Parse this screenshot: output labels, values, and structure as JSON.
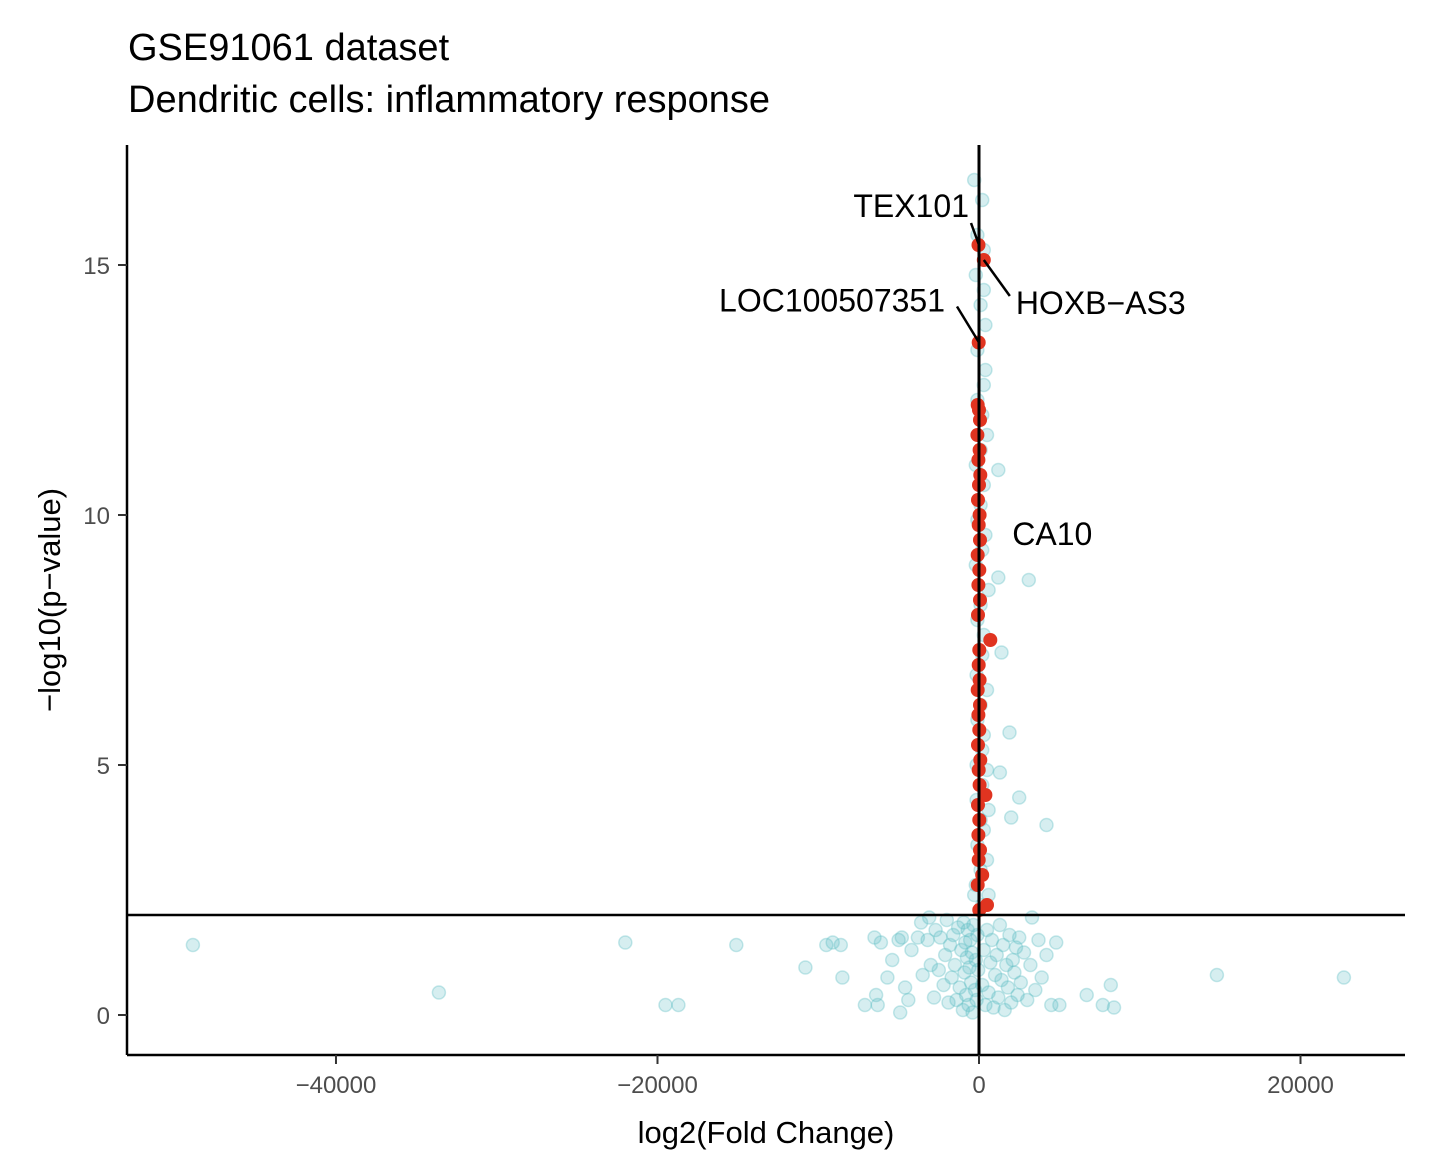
{
  "chart_data": {
    "type": "scatter",
    "title": "GSE91061 dataset",
    "subtitle": "Dendritic cells: inflammatory response",
    "xlabel": "log2(Fold Change)",
    "ylabel": "−log10(p−value)",
    "xlim": [
      -53000,
      26500
    ],
    "ylim": [
      -0.8,
      17.4
    ],
    "x_ticks": [
      -40000,
      -20000,
      0,
      20000
    ],
    "x_tick_labels": [
      "−40000",
      "−20000",
      "0",
      "20000"
    ],
    "y_ticks": [
      0,
      5,
      10,
      15
    ],
    "y_tick_labels": [
      "0",
      "5",
      "10",
      "15"
    ],
    "reference_lines": {
      "vertical_x": 0,
      "horizontal_y": 2
    },
    "grid": false,
    "legend": "none",
    "colors": {
      "nonsignificant": "#5bbcc4",
      "significant": "#e03420",
      "line": "#000000"
    },
    "series": [
      {
        "role": "nonsignificant",
        "points": [
          [
            -48900,
            1.4
          ],
          [
            -33600,
            0.45
          ],
          [
            -22000,
            1.45
          ],
          [
            -19500,
            0.2
          ],
          [
            -18700,
            0.2
          ],
          [
            -15100,
            1.4
          ],
          [
            -10800,
            0.95
          ],
          [
            -9500,
            1.4
          ],
          [
            -9100,
            1.45
          ],
          [
            -8600,
            1.4
          ],
          [
            -8500,
            0.75
          ],
          [
            -7100,
            0.2
          ],
          [
            -6500,
            1.55
          ],
          [
            -6400,
            0.4
          ],
          [
            -6300,
            0.2
          ],
          [
            -6100,
            1.45
          ],
          [
            -5700,
            0.75
          ],
          [
            -5400,
            1.1
          ],
          [
            -5000,
            1.5
          ],
          [
            -4900,
            0.05
          ],
          [
            -4800,
            1.55
          ],
          [
            -4600,
            0.55
          ],
          [
            -4400,
            0.3
          ],
          [
            -4200,
            1.3
          ],
          [
            -3800,
            1.55
          ],
          [
            -3600,
            1.85
          ],
          [
            -3500,
            0.8
          ],
          [
            -3200,
            1.5
          ],
          [
            -3100,
            1.95
          ],
          [
            -3000,
            1.0
          ],
          [
            -2800,
            0.35
          ],
          [
            -2700,
            1.7
          ],
          [
            -2500,
            0.9
          ],
          [
            -2400,
            1.55
          ],
          [
            -2200,
            0.6
          ],
          [
            -2100,
            1.2
          ],
          [
            -2000,
            1.9
          ],
          [
            -1900,
            0.25
          ],
          [
            -1800,
            1.4
          ],
          [
            -1700,
            0.75
          ],
          [
            -1600,
            1.6
          ],
          [
            -1500,
            1.0
          ],
          [
            -1400,
            0.3
          ],
          [
            -1300,
            1.75
          ],
          [
            -1200,
            0.55
          ],
          [
            -1100,
            1.3
          ],
          [
            -1000,
            0.1
          ],
          [
            -950,
            1.85
          ],
          [
            -900,
            0.85
          ],
          [
            -850,
            1.45
          ],
          [
            -800,
            0.4
          ],
          [
            -750,
            1.15
          ],
          [
            -700,
            1.7
          ],
          [
            -650,
            0.2
          ],
          [
            -600,
            0.95
          ],
          [
            -550,
            1.5
          ],
          [
            -500,
            0.65
          ],
          [
            -450,
            1.25
          ],
          [
            -400,
            0.05
          ],
          [
            -350,
            1.8
          ],
          [
            -300,
            2.4
          ],
          [
            -250,
            0.5
          ],
          [
            -200,
            1.1
          ],
          [
            -150,
            0.3
          ],
          [
            -100,
            1.6
          ],
          [
            -50,
            0.9
          ],
          [
            200,
            0.6
          ],
          [
            300,
            1.3
          ],
          [
            400,
            0.2
          ],
          [
            500,
            1.7
          ],
          [
            600,
            0.45
          ],
          [
            700,
            1.05
          ],
          [
            800,
            1.5
          ],
          [
            900,
            0.15
          ],
          [
            1000,
            0.8
          ],
          [
            1100,
            1.2
          ],
          [
            1200,
            0.35
          ],
          [
            1300,
            1.8
          ],
          [
            1400,
            0.7
          ],
          [
            1500,
            1.4
          ],
          [
            1600,
            0.1
          ],
          [
            1700,
            1.0
          ],
          [
            1800,
            0.55
          ],
          [
            1900,
            1.6
          ],
          [
            2000,
            0.25
          ],
          [
            2100,
            1.1
          ],
          [
            2200,
            0.85
          ],
          [
            2300,
            1.35
          ],
          [
            2400,
            0.4
          ],
          [
            2500,
            1.55
          ],
          [
            2600,
            0.65
          ],
          [
            2800,
            1.25
          ],
          [
            3000,
            0.3
          ],
          [
            3200,
            1.0
          ],
          [
            3300,
            1.95
          ],
          [
            3500,
            0.5
          ],
          [
            3700,
            1.5
          ],
          [
            3900,
            0.75
          ],
          [
            4200,
            1.2
          ],
          [
            4500,
            0.2
          ],
          [
            4800,
            1.45
          ],
          [
            5000,
            0.2
          ],
          [
            6700,
            0.4
          ],
          [
            7700,
            0.2
          ],
          [
            8200,
            0.6
          ],
          [
            8400,
            0.15
          ],
          [
            14800,
            0.8
          ],
          [
            22700,
            0.75
          ],
          [
            -300,
            16.7
          ],
          [
            200,
            16.3
          ],
          [
            -100,
            15.6
          ],
          [
            300,
            15.3
          ],
          [
            -200,
            14.8
          ],
          [
            300,
            14.5
          ],
          [
            100,
            14.2
          ],
          [
            400,
            13.8
          ],
          [
            -100,
            13.3
          ],
          [
            400,
            12.9
          ],
          [
            300,
            12.6
          ],
          [
            -100,
            12.3
          ],
          [
            200,
            12.0
          ],
          [
            500,
            11.6
          ],
          [
            100,
            11.3
          ],
          [
            -200,
            11.0
          ],
          [
            1200,
            10.9
          ],
          [
            300,
            10.6
          ],
          [
            100,
            10.2
          ],
          [
            -100,
            9.9
          ],
          [
            400,
            9.6
          ],
          [
            200,
            9.3
          ],
          [
            -200,
            9.0
          ],
          [
            1200,
            8.75
          ],
          [
            3100,
            8.7
          ],
          [
            600,
            8.5
          ],
          [
            100,
            8.2
          ],
          [
            -100,
            7.9
          ],
          [
            300,
            7.6
          ],
          [
            1400,
            7.25
          ],
          [
            200,
            7.2
          ],
          [
            -150,
            6.8
          ],
          [
            500,
            6.5
          ],
          [
            100,
            6.2
          ],
          [
            -100,
            5.9
          ],
          [
            300,
            5.6
          ],
          [
            1900,
            5.65
          ],
          [
            200,
            5.3
          ],
          [
            -150,
            5.0
          ],
          [
            500,
            4.9
          ],
          [
            1300,
            4.85
          ],
          [
            200,
            4.6
          ],
          [
            -150,
            4.3
          ],
          [
            2500,
            4.35
          ],
          [
            600,
            4.1
          ],
          [
            100,
            3.9
          ],
          [
            2000,
            3.95
          ],
          [
            4200,
            3.8
          ],
          [
            300,
            3.7
          ],
          [
            -100,
            3.4
          ],
          [
            500,
            3.1
          ],
          [
            100,
            2.9
          ],
          [
            -200,
            2.6
          ],
          [
            600,
            2.4
          ],
          [
            200,
            2.2
          ]
        ]
      },
      {
        "role": "significant",
        "points": [
          [
            -30,
            15.4
          ],
          [
            300,
            15.1
          ],
          [
            -20,
            13.45
          ],
          [
            -80,
            12.2
          ],
          [
            0,
            12.1
          ],
          [
            60,
            11.9
          ],
          [
            -100,
            11.6
          ],
          [
            40,
            11.3
          ],
          [
            -40,
            11.1
          ],
          [
            80,
            10.8
          ],
          [
            0,
            10.6
          ],
          [
            -60,
            10.3
          ],
          [
            40,
            10.0
          ],
          [
            -20,
            9.8
          ],
          [
            60,
            9.5
          ],
          [
            -80,
            9.2
          ],
          [
            20,
            8.9
          ],
          [
            -40,
            8.6
          ],
          [
            60,
            8.3
          ],
          [
            -60,
            8.0
          ],
          [
            700,
            7.5
          ],
          [
            20,
            7.3
          ],
          [
            -20,
            7.0
          ],
          [
            40,
            6.7
          ],
          [
            -80,
            6.5
          ],
          [
            60,
            6.2
          ],
          [
            -40,
            6.0
          ],
          [
            20,
            5.7
          ],
          [
            -60,
            5.4
          ],
          [
            80,
            5.1
          ],
          [
            -20,
            4.9
          ],
          [
            40,
            4.6
          ],
          [
            400,
            4.4
          ],
          [
            -60,
            4.2
          ],
          [
            20,
            3.9
          ],
          [
            -40,
            3.6
          ],
          [
            60,
            3.3
          ],
          [
            -20,
            3.1
          ],
          [
            200,
            2.8
          ],
          [
            -80,
            2.6
          ],
          [
            500,
            2.2
          ],
          [
            20,
            2.1
          ]
        ]
      }
    ],
    "labels": [
      {
        "text": "TEX101",
        "x": 0,
        "y": 15.4,
        "connector": true
      },
      {
        "text": "HOXB−AS3",
        "x": 300,
        "y": 15.1,
        "connector": true
      },
      {
        "text": "LOC100507351",
        "x": 0,
        "y": 13.45,
        "connector": true
      },
      {
        "text": "CA10",
        "x": 700,
        "y": 7.5,
        "connector": false
      }
    ]
  }
}
